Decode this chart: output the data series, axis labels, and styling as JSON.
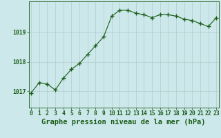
{
  "x": [
    0,
    1,
    2,
    3,
    4,
    5,
    6,
    7,
    8,
    9,
    10,
    11,
    12,
    13,
    14,
    15,
    16,
    17,
    18,
    19,
    20,
    21,
    22,
    23
  ],
  "y": [
    1016.95,
    1017.3,
    1017.25,
    1017.05,
    1017.45,
    1017.75,
    1017.95,
    1018.25,
    1018.55,
    1018.85,
    1019.55,
    1019.75,
    1019.75,
    1019.65,
    1019.6,
    1019.5,
    1019.6,
    1019.6,
    1019.55,
    1019.45,
    1019.4,
    1019.3,
    1019.2,
    1019.5
  ],
  "background_color": "#cce8ea",
  "line_color": "#1a5c18",
  "marker_color": "#1a5c18",
  "grid_color": "#b0cccc",
  "title": "Graphe pression niveau de la mer (hPa)",
  "ylabel_ticks": [
    1017,
    1018,
    1019
  ],
  "xlim": [
    -0.3,
    23.3
  ],
  "ylim": [
    1016.45,
    1020.05
  ],
  "title_fontsize": 7.5,
  "tick_fontsize": 5.8
}
